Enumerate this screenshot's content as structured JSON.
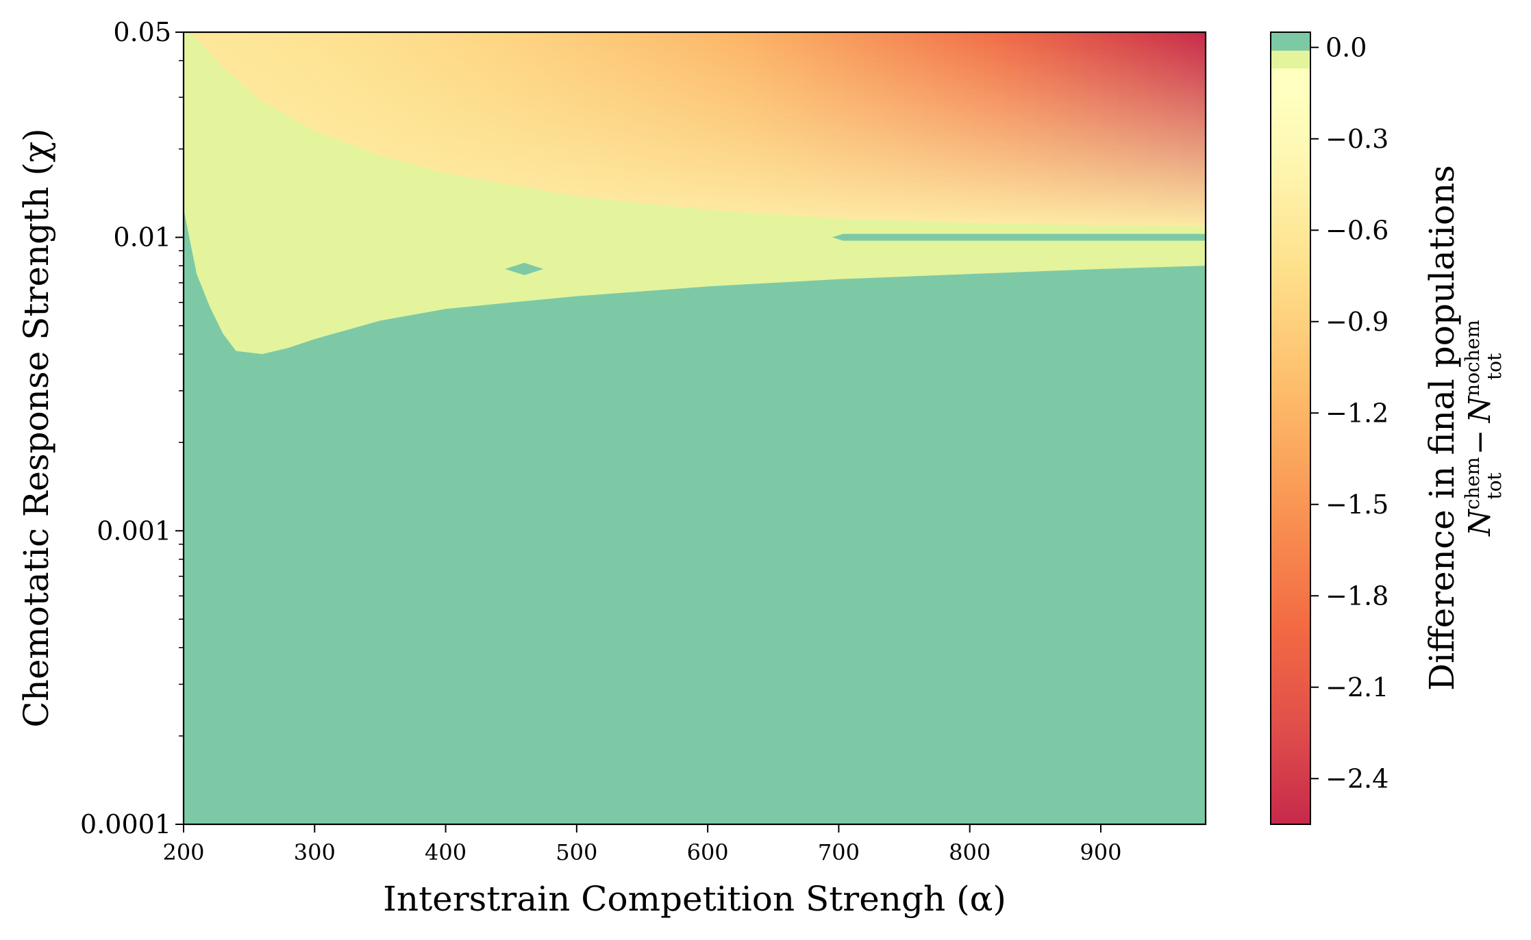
{
  "chart_data": {
    "type": "heatmap",
    "subtype": "filled-contour",
    "title": "",
    "xlabel": "Interstrain Competition Strengh (α)",
    "ylabel": "Chemotatic Response Strength (χ)",
    "xlim": [
      200,
      980
    ],
    "ylim": [
      0.0001,
      0.05
    ],
    "yscale": "log",
    "x_ticks": [
      "200",
      "300",
      "400",
      "500",
      "600",
      "700",
      "800",
      "900"
    ],
    "y_ticks": [
      "0.05",
      "0.01",
      "0.001",
      "0.0001"
    ],
    "colormap": "Spectral (diverging, low end)",
    "colorbar": {
      "label_line1": "Difference in final populations",
      "label_line2_main_a": "N",
      "label_line2_sup_a": "chem",
      "label_line2_sub_a": "tot",
      "label_line2_minus": "−",
      "label_line2_main_b": "N",
      "label_line2_sup_b": "nochem",
      "label_line2_sub_b": "tot",
      "range": [
        -2.55,
        0.05
      ],
      "ticks": [
        "0.0",
        "−0.3",
        "−0.6",
        "−0.9",
        "−1.2",
        "−1.5",
        "−1.8",
        "−2.1",
        "−2.4"
      ],
      "tick_values": [
        0.0,
        -0.3,
        -0.6,
        -0.9,
        -1.2,
        -1.5,
        -1.8,
        -2.1,
        -2.4
      ]
    },
    "regions": [
      {
        "level": "≈0 (no difference)",
        "color": "#7dc9a6",
        "description_points_alpha": [
          200,
          210,
          220,
          230,
          240,
          260,
          280,
          300,
          350,
          400,
          450,
          500,
          600,
          700,
          800,
          900,
          980
        ],
        "upper_boundary_chi": [
          0.0125,
          0.0075,
          0.0058,
          0.0047,
          0.0041,
          0.004,
          0.0042,
          0.0045,
          0.0052,
          0.0057,
          0.006,
          0.0063,
          0.0068,
          0.0072,
          0.0075,
          0.0078,
          0.008
        ]
      },
      {
        "level": "slightly negative",
        "color": "#e3f49d",
        "upper_boundary_alpha": [
          205,
          230,
          260,
          300,
          350,
          400,
          500,
          600,
          700,
          800,
          900,
          980
        ],
        "upper_boundary_chi": [
          0.05,
          0.038,
          0.029,
          0.023,
          0.019,
          0.0165,
          0.0138,
          0.0124,
          0.0116,
          0.0112,
          0.011,
          0.0109
        ]
      }
    ],
    "features": [
      {
        "type": "island",
        "alpha_center": 460,
        "chi_center": 0.0078,
        "color": "#7dc9a6"
      },
      {
        "type": "band",
        "alpha_range": [
          695,
          980
        ],
        "chi_center": 0.01,
        "color": "#7dc9a6"
      }
    ]
  }
}
